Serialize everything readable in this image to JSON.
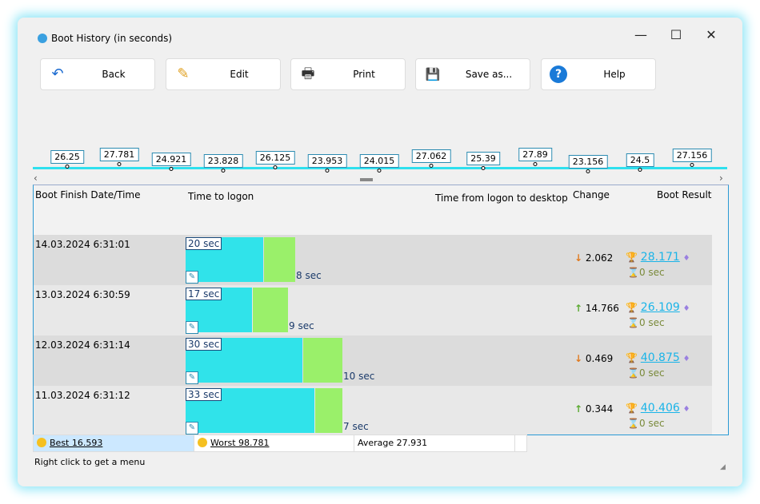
{
  "window": {
    "title": "Boot History (in seconds)",
    "minimize": "—",
    "maximize": "☐",
    "close": "✕"
  },
  "toolbar": [
    {
      "label": "Back",
      "icon": "↶"
    },
    {
      "label": "Edit",
      "icon": "✎"
    },
    {
      "label": "Print",
      "icon": "🖶"
    },
    {
      "label": "Save as...",
      "icon": "💾"
    },
    {
      "label": "Help",
      "icon": "?"
    }
  ],
  "timeline": [
    "26.25",
    "27.781",
    "24.921",
    "23.828",
    "26.125",
    "23.953",
    "24.015",
    "27.062",
    "25.39",
    "27.89",
    "23.156",
    "24.5",
    "27.156"
  ],
  "headers": {
    "date": "Boot Finish Date/Time",
    "logon": "Time to logon",
    "desktop": "Time from logon to desktop",
    "change": "Change",
    "result": "Boot Result"
  },
  "rows": [
    {
      "date": "14.03.2024 6:31:01",
      "logon_sec": 20,
      "logon": "20 sec",
      "desktop_sec": 8,
      "desktop": "8 sec",
      "dir": "down",
      "change": "2.062",
      "result": "28.171",
      "wait": "0 sec"
    },
    {
      "date": "13.03.2024 6:30:59",
      "logon_sec": 17,
      "logon": "17 sec",
      "desktop_sec": 9,
      "desktop": "9 sec",
      "dir": "up",
      "change": "14.766",
      "result": "26.109",
      "wait": "0 sec"
    },
    {
      "date": "12.03.2024 6:31:14",
      "logon_sec": 30,
      "logon": "30 sec",
      "desktop_sec": 10,
      "desktop": "10 sec",
      "dir": "down",
      "change": "0.469",
      "result": "40.875",
      "wait": "0 sec"
    },
    {
      "date": "11.03.2024 6:31:12",
      "logon_sec": 33,
      "logon": "33 sec",
      "desktop_sec": 7,
      "desktop": "7 sec",
      "dir": "up",
      "change": "0.344",
      "result": "40.406",
      "wait": "0 sec"
    }
  ],
  "stats": {
    "best": "Best 16.593",
    "worst": "Worst 98.781",
    "average": "Average 27.931"
  },
  "status": "Right click to get a menu"
}
